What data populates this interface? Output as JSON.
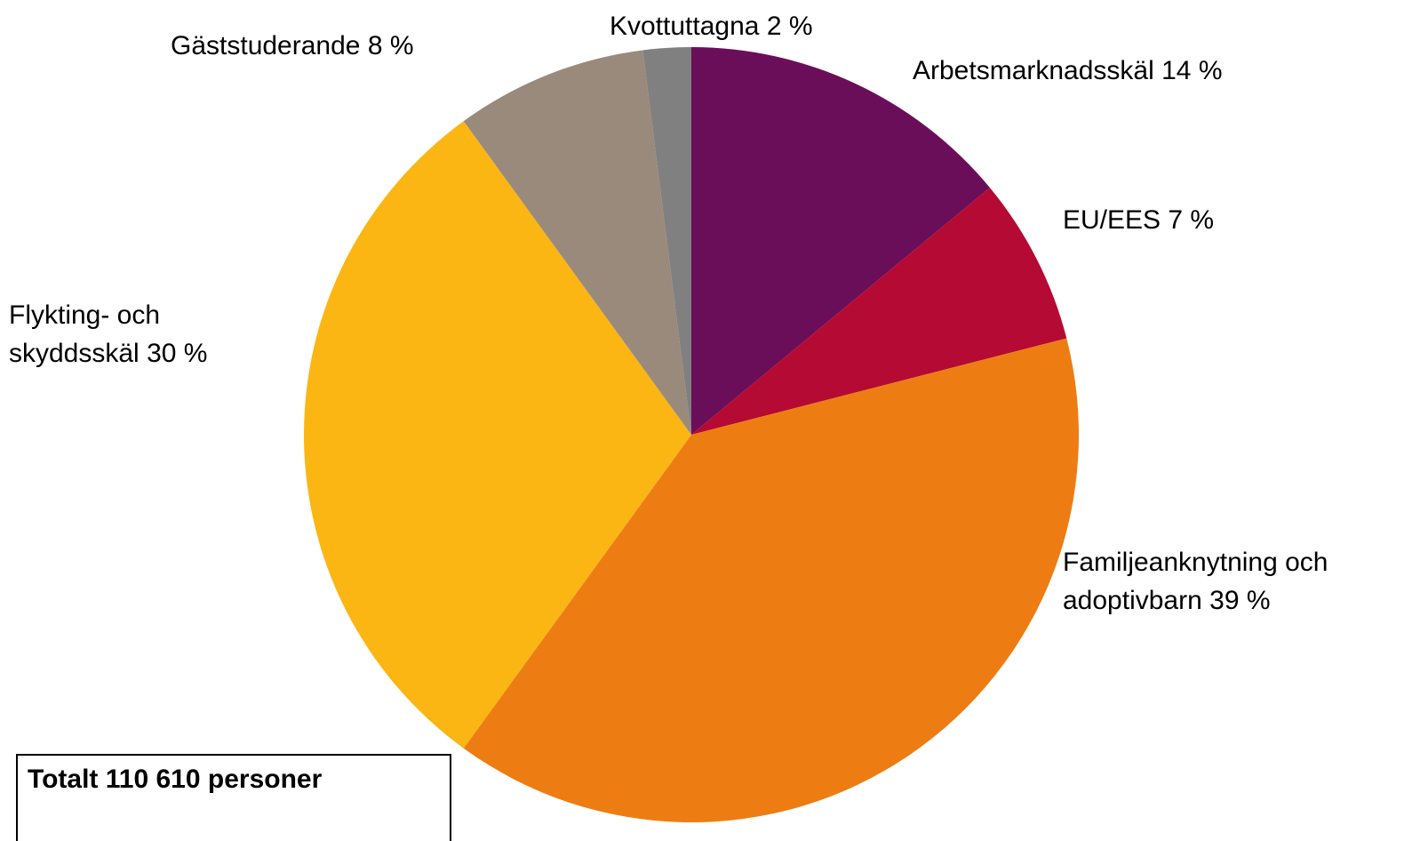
{
  "chart_data": {
    "type": "pie",
    "categories": [
      "Arbetsmarknadsskäl",
      "EU/EES",
      "Familjeanknytning och adoptivbarn",
      "Flykting- och skyddsskäl",
      "Gäststuderande",
      "Kvottuttagna"
    ],
    "values": [
      14,
      7,
      39,
      30,
      8,
      2
    ],
    "value_labels": [
      "14 %",
      "7 %",
      "39 %",
      "30 %",
      "8 %",
      "2 %"
    ],
    "colors": [
      "#6b0e5a",
      "#b50a33",
      "#ed7d13",
      "#fbb614",
      "#9a8a7c",
      "#808080"
    ],
    "annotation": "Totalt 110 610 personer"
  }
}
